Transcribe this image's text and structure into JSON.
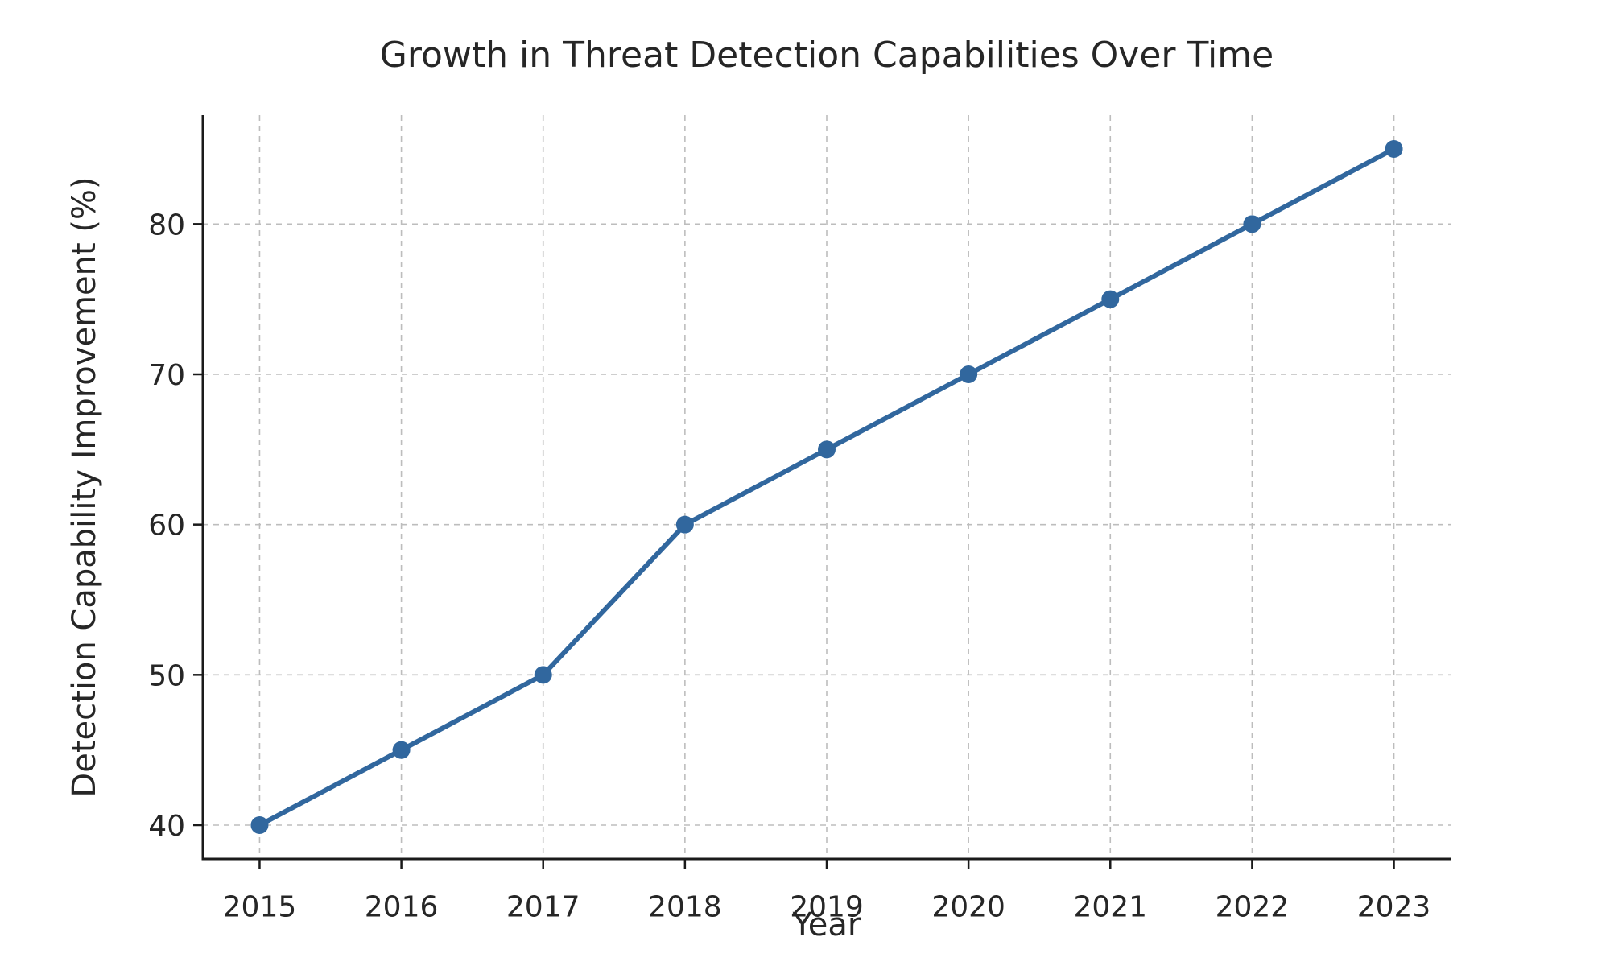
{
  "chart_data": {
    "type": "line",
    "title": "Growth in Threat Detection Capabilities Over Time",
    "xlabel": "Year",
    "ylabel": "Detection Capability Improvement (%)",
    "x": [
      2015,
      2016,
      2017,
      2018,
      2019,
      2020,
      2021,
      2022,
      2023
    ],
    "values": [
      40,
      45,
      50,
      60,
      65,
      70,
      75,
      80,
      85
    ],
    "series": [
      {
        "name": "Detection Capability Improvement (%)",
        "values": [
          40,
          45,
          50,
          60,
          65,
          70,
          75,
          80,
          85
        ]
      }
    ],
    "xtick_labels": [
      "2015",
      "2016",
      "2017",
      "2018",
      "2019",
      "2020",
      "2021",
      "2022",
      "2023"
    ],
    "ytick_labels": [
      "40",
      "50",
      "60",
      "70",
      "80"
    ],
    "yticks": [
      40,
      50,
      60,
      70,
      80
    ],
    "xlim": [
      2014.6,
      2023.4
    ],
    "ylim": [
      37.75,
      87.25
    ],
    "grid": "on",
    "grid_style": "dashed",
    "legend": "none",
    "marker": "circle",
    "colors": {
      "line": "#31679E",
      "marker": "#31679E",
      "grid": "#bdbdbd",
      "spine": "#1a1a1a",
      "text": "#262626",
      "background": "#ffffff"
    }
  }
}
